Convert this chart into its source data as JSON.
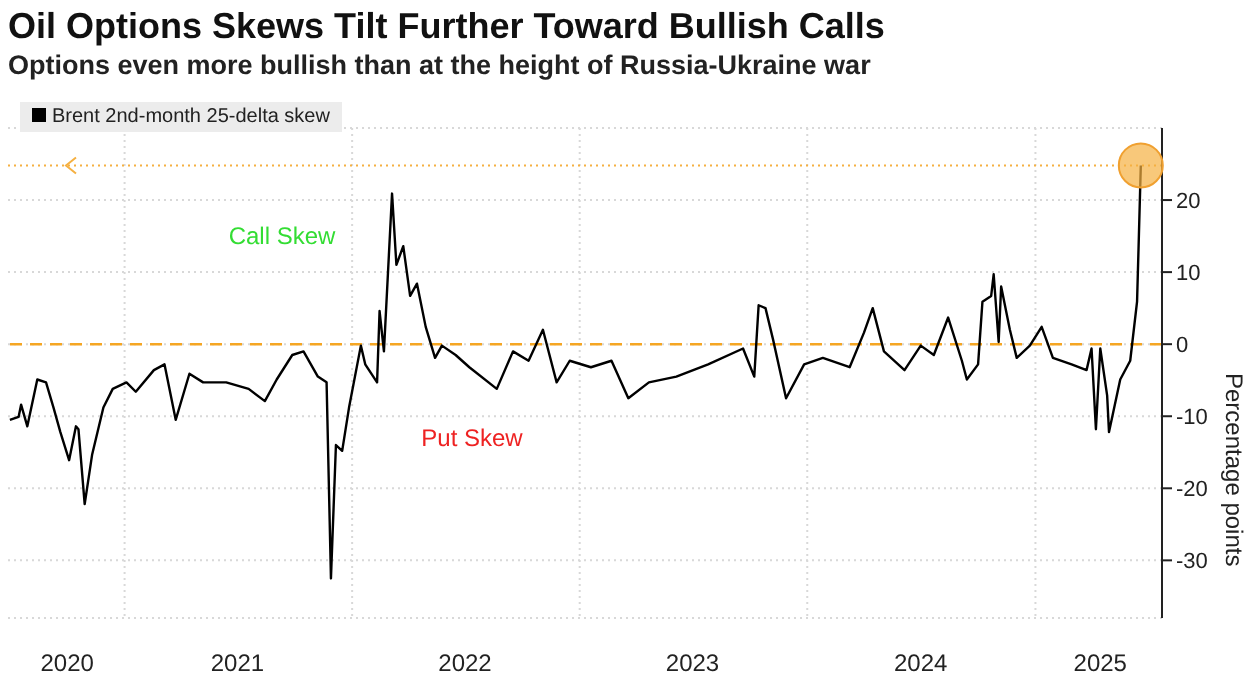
{
  "chart_data": {
    "type": "line",
    "title": "Oil Options Skews Tilt Further Toward Bullish Calls",
    "subtitle": "Options even more bullish than at the height of Russia-Ukraine war",
    "ylabel": "Percentage points",
    "x": [
      "2020-07-01",
      "2020-07-15",
      "2020-07-19",
      "2020-07-29",
      "2020-08-14",
      "2020-08-28",
      "2020-09-09",
      "2020-09-20",
      "2020-10-04",
      "2020-10-15",
      "2020-10-19",
      "2020-10-29",
      "2020-11-10",
      "2020-11-28",
      "2020-12-13",
      "2021-01-04",
      "2021-01-19",
      "2021-02-17",
      "2021-03-06",
      "2021-03-24",
      "2021-04-15",
      "2021-05-07",
      "2021-06-13",
      "2021-07-19",
      "2021-08-14",
      "2021-09-02",
      "2021-09-27",
      "2021-10-15",
      "2021-11-07",
      "2021-11-21",
      "2021-11-28",
      "2021-12-06",
      "2021-12-16",
      "2021-12-27",
      "2022-01-15",
      "2022-01-22",
      "2022-02-10",
      "2022-02-14",
      "2022-02-21",
      "2022-03-06",
      "2022-03-13",
      "2022-03-24",
      "2022-04-04",
      "2022-04-15",
      "2022-04-29",
      "2022-05-14",
      "2022-05-25",
      "2022-06-16",
      "2022-07-08",
      "2022-08-21",
      "2022-09-16",
      "2022-10-11",
      "2022-11-03",
      "2022-11-25",
      "2022-12-16",
      "2023-01-19",
      "2023-02-21",
      "2023-03-20",
      "2023-04-22",
      "2023-06-05",
      "2023-07-26",
      "2023-09-20",
      "2023-10-08",
      "2023-10-15",
      "2023-10-26",
      "2023-11-07",
      "2023-11-28",
      "2023-12-27",
      "2024-01-26",
      "2024-03-09",
      "2024-04-01",
      "2024-04-15",
      "2024-05-03",
      "2024-06-05",
      "2024-07-01",
      "2024-07-22",
      "2024-08-14",
      "2024-09-05",
      "2024-09-13",
      "2024-10-01",
      "2024-10-08",
      "2024-10-22",
      "2024-10-26",
      "2024-11-03",
      "2024-11-07",
      "2024-11-21",
      "2024-12-02",
      "2024-12-23",
      "2025-01-11",
      "2025-01-29",
      "2025-02-28",
      "2025-03-24",
      "2025-04-01",
      "2025-04-08",
      "2025-04-15",
      "2025-04-26",
      "2025-04-29",
      "2025-05-17",
      "2025-06-02",
      "2025-06-13",
      "2025-06-16",
      "2025-06-19"
    ],
    "series": [
      {
        "name": "Brent 2nd-month 25-delta skew",
        "color": "#000000",
        "values": [
          -10.5,
          -10.1,
          -8.4,
          -11.4,
          -4.9,
          -5.3,
          -8.8,
          -12.2,
          -16.1,
          -11.4,
          -11.8,
          -22.2,
          -15.3,
          -8.8,
          -6.2,
          -5.3,
          -6.6,
          -3.6,
          -2.8,
          -10.5,
          -4.1,
          -5.3,
          -5.3,
          -6.2,
          -7.9,
          -4.9,
          -1.5,
          -1.0,
          -4.5,
          -5.3,
          -32.5,
          -14.0,
          -14.8,
          -8.8,
          -0.2,
          -2.8,
          -5.3,
          4.6,
          -1.0,
          20.9,
          11.0,
          13.6,
          6.7,
          8.4,
          2.4,
          -1.9,
          -0.2,
          -1.5,
          -3.2,
          -6.2,
          -1.0,
          -2.3,
          2.0,
          -5.3,
          -2.3,
          -3.2,
          -2.3,
          -7.5,
          -5.3,
          -4.5,
          -2.8,
          -0.6,
          -4.5,
          5.4,
          5.0,
          0.7,
          -7.5,
          -2.8,
          -1.9,
          -3.2,
          1.6,
          5.0,
          -1.0,
          -3.6,
          -0.2,
          -1.5,
          3.7,
          -2.3,
          -4.9,
          -2.8,
          5.9,
          6.7,
          9.7,
          0.3,
          8.0,
          2.0,
          -1.9,
          -0.2,
          2.4,
          -1.9,
          -2.8,
          -3.6,
          -0.6,
          -11.8,
          -0.6,
          -7.1,
          -12.2,
          -4.9,
          -2.3,
          5.9,
          15.3,
          24.8
        ]
      }
    ],
    "xlim": [
      "2020-06-28",
      "2025-07-23"
    ],
    "xticks": [
      {
        "value": "2020-10-01",
        "label": "2020"
      },
      {
        "value": "2021-01-01",
        "label": null
      },
      {
        "value": "2021-07-01",
        "label": "2021"
      },
      {
        "value": "2022-01-01",
        "label": null
      },
      {
        "value": "2022-07-01",
        "label": "2022"
      },
      {
        "value": "2023-01-01",
        "label": null
      },
      {
        "value": "2023-07-01",
        "label": "2023"
      },
      {
        "value": "2024-01-01",
        "label": null
      },
      {
        "value": "2024-07-01",
        "label": "2024"
      },
      {
        "value": "2025-01-01",
        "label": null
      },
      {
        "value": "2025-04-15",
        "label": "2025"
      }
    ],
    "ylim": [
      -38,
      30
    ],
    "yticks": [
      -30,
      -20,
      -10,
      0,
      10,
      20
    ],
    "ref_lines": [
      {
        "axis": "y",
        "value": 0,
        "color": "#f5a623",
        "line_style": "dashed"
      },
      {
        "axis": "y",
        "value": 24.8,
        "color": "#f5b041",
        "line_style": "dotted"
      }
    ],
    "annotations": [
      "Call Skew",
      "Put Skew"
    ],
    "grid": true,
    "legend": "top left",
    "marker": "none",
    "line_style": "solid"
  }
}
